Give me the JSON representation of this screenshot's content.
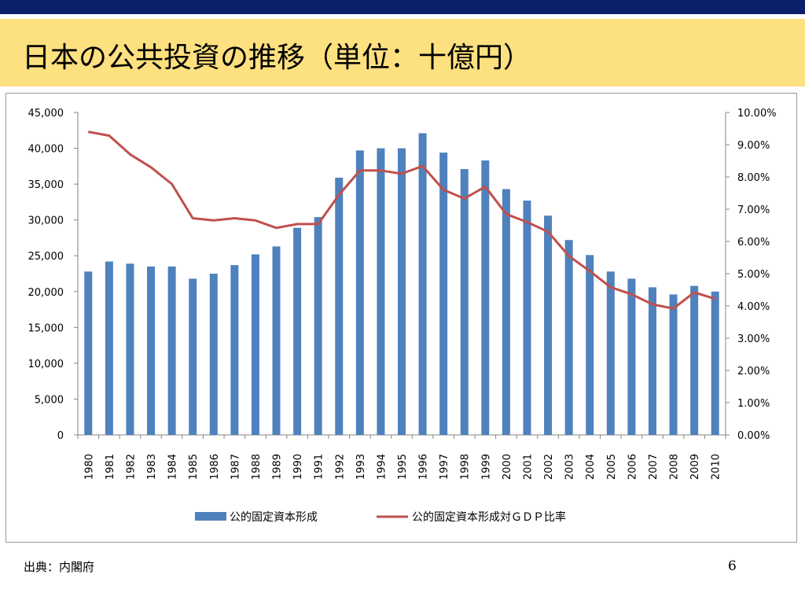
{
  "slide": {
    "title": "日本の公共投資の推移（単位：十億円）",
    "source": "出典：内閣府",
    "page_number": "6"
  },
  "colors": {
    "top_bar": "#0c1f6b",
    "title_band": "#fde07f",
    "bar": "#4f81bd",
    "line": "#c0504d"
  },
  "chart_data": {
    "type": "bar",
    "title": "",
    "categories": [
      "1980",
      "1981",
      "1982",
      "1983",
      "1984",
      "1985",
      "1986",
      "1987",
      "1988",
      "1989",
      "1990",
      "1991",
      "1992",
      "1993",
      "1994",
      "1995",
      "1996",
      "1997",
      "1998",
      "1999",
      "2000",
      "2001",
      "2002",
      "2003",
      "2004",
      "2005",
      "2006",
      "2007",
      "2008",
      "2009",
      "2010"
    ],
    "series": [
      {
        "name": "公的固定資本形成",
        "type": "bar",
        "axis": "left",
        "values": [
          22800,
          24200,
          23900,
          23500,
          23500,
          21800,
          22500,
          23700,
          25200,
          26300,
          28900,
          30400,
          35900,
          39700,
          40000,
          40000,
          42100,
          39400,
          37100,
          38300,
          34300,
          32700,
          30600,
          27200,
          25100,
          22800,
          21800,
          20600,
          19600,
          20800,
          20000
        ]
      },
      {
        "name": "公的固定資本形成対ＧＤＰ比率",
        "type": "line",
        "axis": "right",
        "values": [
          9.4,
          9.28,
          8.7,
          8.3,
          7.78,
          6.72,
          6.65,
          6.72,
          6.65,
          6.42,
          6.54,
          6.54,
          7.45,
          8.2,
          8.2,
          8.1,
          8.34,
          7.6,
          7.33,
          7.7,
          6.85,
          6.6,
          6.3,
          5.55,
          5.08,
          4.58,
          4.36,
          4.05,
          3.92,
          4.42,
          4.22
        ]
      }
    ],
    "ylim": [
      0,
      45000
    ],
    "yticks": [
      "0",
      "5,000",
      "10,000",
      "15,000",
      "20,000",
      "25,000",
      "30,000",
      "35,000",
      "40,000",
      "45,000"
    ],
    "y2lim": [
      0,
      10
    ],
    "y2ticks": [
      "0.00%",
      "1.00%",
      "2.00%",
      "3.00%",
      "4.00%",
      "5.00%",
      "6.00%",
      "7.00%",
      "8.00%",
      "9.00%",
      "10.00%"
    ],
    "xlabel": "",
    "ylabel": "",
    "grid": false,
    "legend": "bottom"
  }
}
